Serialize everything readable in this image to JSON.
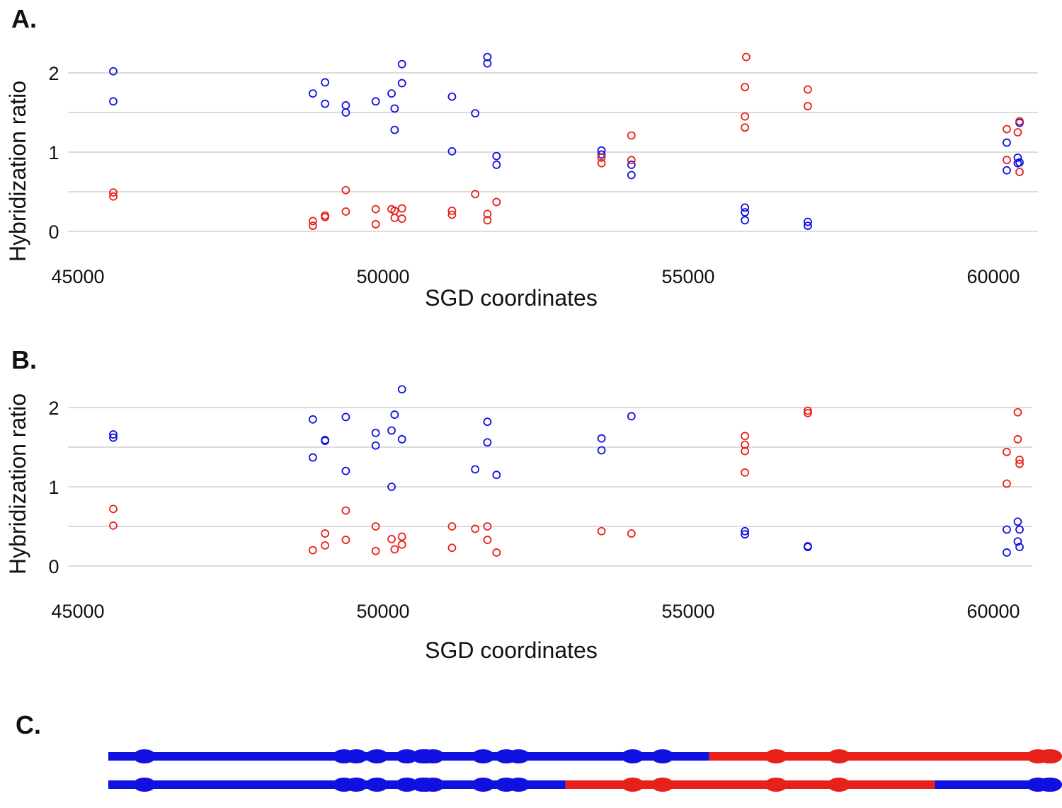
{
  "panels": {
    "a": {
      "letter": "A."
    },
    "b": {
      "letter": "B."
    },
    "c": {
      "letter": "C."
    }
  },
  "colors": {
    "series1": "#1010e0",
    "series2": "#e8201a",
    "grid": "#d0d0d0"
  },
  "chart_data": [
    {
      "type": "scatter",
      "panel": "A.",
      "xlabel": "SGD coordinates",
      "ylabel": "Hybridization ratio",
      "xlim": [
        44500,
        60700
      ],
      "ylim": [
        0,
        2.2
      ],
      "xticks": [
        45000,
        50000,
        55000,
        60000
      ],
      "yticks": [
        0,
        1,
        2
      ],
      "ytick_labels": [
        "0",
        "1",
        "2"
      ],
      "gridlines_y": [
        0,
        0.5,
        1,
        1.5,
        2
      ],
      "series": [
        {
          "name": "blue",
          "color": "#1010e0",
          "points": [
            [
              45580,
              2.02
            ],
            [
              45580,
              1.64
            ],
            [
              48850,
              1.74
            ],
            [
              49050,
              1.88
            ],
            [
              49050,
              1.61
            ],
            [
              49390,
              1.59
            ],
            [
              49390,
              1.5
            ],
            [
              49880,
              1.64
            ],
            [
              50140,
              1.74
            ],
            [
              50190,
              1.55
            ],
            [
              50190,
              1.28
            ],
            [
              50310,
              2.11
            ],
            [
              50310,
              1.87
            ],
            [
              51130,
              1.7
            ],
            [
              51130,
              1.01
            ],
            [
              51510,
              1.49
            ],
            [
              51710,
              2.2
            ],
            [
              51710,
              2.12
            ],
            [
              51860,
              0.95
            ],
            [
              51860,
              0.84
            ],
            [
              53580,
              1.02
            ],
            [
              53580,
              0.97
            ],
            [
              54070,
              0.84
            ],
            [
              54070,
              0.71
            ],
            [
              55930,
              0.3
            ],
            [
              55930,
              0.24
            ],
            [
              55930,
              0.14
            ],
            [
              56960,
              0.12
            ],
            [
              56960,
              0.07
            ],
            [
              60220,
              1.12
            ],
            [
              60220,
              0.77
            ],
            [
              60400,
              0.93
            ],
            [
              60400,
              0.86
            ],
            [
              60430,
              1.37
            ],
            [
              60430,
              0.87
            ]
          ]
        },
        {
          "name": "red",
          "color": "#e8201a",
          "points": [
            [
              45580,
              0.49
            ],
            [
              45580,
              0.44
            ],
            [
              48850,
              0.13
            ],
            [
              48850,
              0.07
            ],
            [
              49050,
              0.2
            ],
            [
              49050,
              0.18
            ],
            [
              49390,
              0.52
            ],
            [
              49390,
              0.25
            ],
            [
              49880,
              0.28
            ],
            [
              49880,
              0.09
            ],
            [
              50140,
              0.28
            ],
            [
              50190,
              0.26
            ],
            [
              50190,
              0.17
            ],
            [
              50310,
              0.29
            ],
            [
              50310,
              0.16
            ],
            [
              51130,
              0.26
            ],
            [
              51130,
              0.21
            ],
            [
              51510,
              0.47
            ],
            [
              51710,
              0.22
            ],
            [
              51710,
              0.14
            ],
            [
              51860,
              0.37
            ],
            [
              53580,
              0.93
            ],
            [
              53580,
              0.86
            ],
            [
              54070,
              1.21
            ],
            [
              54070,
              0.9
            ],
            [
              55950,
              2.2
            ],
            [
              55930,
              1.82
            ],
            [
              55930,
              1.45
            ],
            [
              55930,
              1.31
            ],
            [
              56960,
              1.79
            ],
            [
              56960,
              1.58
            ],
            [
              60220,
              1.29
            ],
            [
              60220,
              0.9
            ],
            [
              60400,
              1.25
            ],
            [
              60430,
              1.39
            ],
            [
              60430,
              0.75
            ]
          ]
        }
      ]
    },
    {
      "type": "scatter",
      "panel": "B.",
      "xlabel": "SGD coordinates",
      "ylabel": "Hybridization ratio",
      "xlim": [
        44500,
        60600
      ],
      "ylim": [
        0,
        2.2
      ],
      "xticks": [
        45000,
        50000,
        55000,
        60000
      ],
      "yticks": [
        0,
        1,
        2
      ],
      "ytick_labels": [
        "0",
        "1",
        "2"
      ],
      "gridlines_y": [
        0,
        0.5,
        1,
        1.5,
        2
      ],
      "series": [
        {
          "name": "blue",
          "color": "#1010e0",
          "points": [
            [
              45580,
              1.66
            ],
            [
              45580,
              1.62
            ],
            [
              48850,
              1.85
            ],
            [
              48850,
              1.37
            ],
            [
              49050,
              1.59
            ],
            [
              49050,
              1.58
            ],
            [
              49390,
              1.88
            ],
            [
              49390,
              1.2
            ],
            [
              49880,
              1.68
            ],
            [
              49880,
              1.52
            ],
            [
              50140,
              1.71
            ],
            [
              50140,
              1.0
            ],
            [
              50190,
              1.91
            ],
            [
              50310,
              2.23
            ],
            [
              50310,
              1.6
            ],
            [
              51510,
              1.22
            ],
            [
              51710,
              1.82
            ],
            [
              51710,
              1.56
            ],
            [
              51860,
              1.15
            ],
            [
              53580,
              1.61
            ],
            [
              53580,
              1.46
            ],
            [
              54070,
              1.89
            ],
            [
              55930,
              0.44
            ],
            [
              55930,
              0.4
            ],
            [
              56960,
              0.25
            ],
            [
              56960,
              0.24
            ],
            [
              60220,
              0.46
            ],
            [
              60220,
              0.17
            ],
            [
              60400,
              0.56
            ],
            [
              60400,
              0.31
            ],
            [
              60430,
              0.46
            ],
            [
              60430,
              0.24
            ]
          ]
        },
        {
          "name": "red",
          "color": "#e8201a",
          "points": [
            [
              45580,
              0.72
            ],
            [
              45580,
              0.51
            ],
            [
              48850,
              0.2
            ],
            [
              49050,
              0.41
            ],
            [
              49050,
              0.26
            ],
            [
              49390,
              0.7
            ],
            [
              49390,
              0.33
            ],
            [
              49880,
              0.5
            ],
            [
              49880,
              0.19
            ],
            [
              50140,
              0.34
            ],
            [
              50190,
              0.21
            ],
            [
              50310,
              0.37
            ],
            [
              50310,
              0.27
            ],
            [
              51130,
              0.5
            ],
            [
              51130,
              0.23
            ],
            [
              51510,
              0.47
            ],
            [
              51710,
              0.5
            ],
            [
              51710,
              0.33
            ],
            [
              51860,
              0.17
            ],
            [
              53580,
              0.44
            ],
            [
              54070,
              0.41
            ],
            [
              55930,
              1.64
            ],
            [
              55930,
              1.53
            ],
            [
              55930,
              1.45
            ],
            [
              55930,
              1.18
            ],
            [
              56960,
              1.96
            ],
            [
              56960,
              1.93
            ],
            [
              60220,
              1.44
            ],
            [
              60220,
              1.04
            ],
            [
              60400,
              1.94
            ],
            [
              60400,
              1.6
            ],
            [
              60430,
              1.34
            ],
            [
              60430,
              1.29
            ]
          ]
        }
      ]
    },
    {
      "type": "track",
      "panel": "C.",
      "xlim": [
        44500,
        60600
      ],
      "tracks": [
        {
          "name": "track-1",
          "segments": [
            {
              "start": 44500,
              "end": 54750,
              "color": "#1010e0"
            },
            {
              "start": 54750,
              "end": 60600,
              "color": "#e8201a"
            }
          ],
          "bulges": [
            45580,
            48850,
            49050,
            49390,
            49880,
            50140,
            50190,
            50310,
            51130,
            51510,
            51710,
            53580,
            54070,
            55930,
            56960,
            60220,
            60400,
            60430
          ]
        },
        {
          "name": "track-2",
          "segments": [
            {
              "start": 44500,
              "end": 52300,
              "color": "#1010e0"
            },
            {
              "start": 52300,
              "end": 58600,
              "color": "#e8201a"
            },
            {
              "start": 58600,
              "end": 60600,
              "color": "#1010e0"
            }
          ],
          "bulges": [
            45580,
            48850,
            49050,
            49390,
            49880,
            50140,
            50190,
            50310,
            51130,
            51510,
            51710,
            53580,
            54070,
            55930,
            56960,
            60220,
            60400,
            60430
          ]
        }
      ]
    }
  ]
}
